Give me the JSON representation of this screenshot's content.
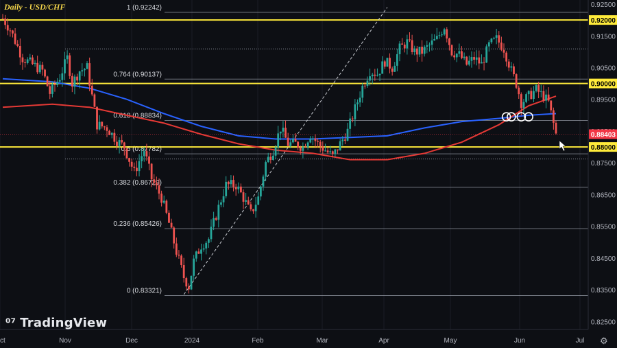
{
  "chart_data": {
    "type": "candlestick",
    "title": "Daily - USD/CHF",
    "brand": "TradingView",
    "x_labels": [
      "Oct",
      "Nov",
      "Dec",
      "2024",
      "Feb",
      "Mar",
      "Apr",
      "May",
      "Jun",
      "Jul"
    ],
    "price_ticks": [
      "0.92500",
      "0.91500",
      "0.90500",
      "0.89500",
      "0.88500",
      "0.87500",
      "0.86500",
      "0.85500",
      "0.84500",
      "0.83500",
      "0.82500"
    ],
    "ylim": [
      0.8225,
      0.9263
    ],
    "current_price": {
      "value": 0.88403,
      "label": "0.88403",
      "color": "#f23645"
    },
    "horizontal_levels": [
      {
        "value": 0.92,
        "label": "0.92000",
        "color": "#ffeb3b"
      },
      {
        "value": 0.9,
        "label": "0.90000",
        "color": "#ffeb3b"
      },
      {
        "value": 0.88,
        "label": "0.88000",
        "color": "#ffeb3b"
      }
    ],
    "fib_levels": [
      {
        "ratio": "1",
        "value": 0.92242,
        "label": "1 (0.92242)"
      },
      {
        "ratio": "0.764",
        "value": 0.90137,
        "label": "0.764 (0.90137)"
      },
      {
        "ratio": "0.618",
        "value": 0.88834,
        "label": "0.618 (0.88834)"
      },
      {
        "ratio": "0.5",
        "value": 0.87782,
        "label": "0.5 (0.87782)"
      },
      {
        "ratio": "0.382",
        "value": 0.86729,
        "label": "0.382 (0.86729)"
      },
      {
        "ratio": "0.236",
        "value": 0.85426,
        "label": "0.236 (0.85426)"
      },
      {
        "ratio": "0",
        "value": 0.83321,
        "label": "0 (0.83321)"
      }
    ],
    "extra_levels": [
      0.9109,
      0.8762
    ],
    "up_color": "#26a69a",
    "down_color": "#ef5350",
    "ma_colors": {
      "fast": "#e53935",
      "slow": "#2962ff"
    },
    "close_path": [
      [
        0,
        0.9205
      ],
      [
        3,
        0.917
      ],
      [
        8,
        0.908
      ],
      [
        12,
        0.906
      ],
      [
        16,
        0.904
      ],
      [
        19,
        0.897
      ],
      [
        23,
        0.902
      ],
      [
        26,
        0.908
      ],
      [
        28,
        0.9
      ],
      [
        31,
        0.904
      ],
      [
        34,
        0.905
      ],
      [
        38,
        0.887
      ],
      [
        42,
        0.886
      ],
      [
        46,
        0.882
      ],
      [
        49,
        0.88
      ],
      [
        53,
        0.872
      ],
      [
        57,
        0.879
      ],
      [
        60,
        0.87
      ],
      [
        64,
        0.864
      ],
      [
        67,
        0.856
      ],
      [
        70,
        0.847
      ],
      [
        73,
        0.839
      ],
      [
        75,
        0.836
      ],
      [
        77,
        0.844
      ],
      [
        80,
        0.849
      ],
      [
        83,
        0.851
      ],
      [
        87,
        0.861
      ],
      [
        90,
        0.868
      ],
      [
        94,
        0.868
      ],
      [
        97,
        0.864
      ],
      [
        100,
        0.859
      ],
      [
        103,
        0.864
      ],
      [
        106,
        0.875
      ],
      [
        109,
        0.879
      ],
      [
        112,
        0.886
      ],
      [
        115,
        0.881
      ],
      [
        118,
        0.881
      ],
      [
        121,
        0.88
      ],
      [
        124,
        0.884
      ],
      [
        127,
        0.881
      ],
      [
        130,
        0.879
      ],
      [
        133,
        0.877
      ],
      [
        136,
        0.881
      ],
      [
        139,
        0.885
      ],
      [
        142,
        0.892
      ],
      [
        145,
        0.899
      ],
      [
        148,
        0.904
      ],
      [
        151,
        0.903
      ],
      [
        154,
        0.907
      ],
      [
        157,
        0.905
      ],
      [
        160,
        0.911
      ],
      [
        163,
        0.913
      ],
      [
        166,
        0.91
      ],
      [
        169,
        0.91
      ],
      [
        172,
        0.912
      ],
      [
        175,
        0.914
      ],
      [
        178,
        0.918
      ],
      [
        181,
        0.91
      ],
      [
        184,
        0.909
      ],
      [
        187,
        0.906
      ],
      [
        190,
        0.908
      ],
      [
        193,
        0.906
      ],
      [
        196,
        0.912
      ],
      [
        199,
        0.914
      ],
      [
        202,
        0.911
      ],
      [
        205,
        0.904
      ],
      [
        207,
        0.9
      ],
      [
        209,
        0.894
      ],
      [
        212,
        0.896
      ],
      [
        215,
        0.898
      ],
      [
        218,
        0.896
      ],
      [
        220,
        0.894
      ],
      [
        223,
        0.884
      ]
    ],
    "fast_ma_path": [
      [
        0,
        0.8925
      ],
      [
        20,
        0.8935
      ],
      [
        35,
        0.8925
      ],
      [
        50,
        0.89
      ],
      [
        65,
        0.8875
      ],
      [
        80,
        0.884
      ],
      [
        95,
        0.881
      ],
      [
        110,
        0.879
      ],
      [
        125,
        0.878
      ],
      [
        140,
        0.876
      ],
      [
        155,
        0.876
      ],
      [
        170,
        0.878
      ],
      [
        185,
        0.8815
      ],
      [
        200,
        0.887
      ],
      [
        212,
        0.893
      ],
      [
        223,
        0.896
      ]
    ],
    "slow_ma_path": [
      [
        0,
        0.9015
      ],
      [
        20,
        0.9005
      ],
      [
        35,
        0.8985
      ],
      [
        50,
        0.895
      ],
      [
        65,
        0.8905
      ],
      [
        80,
        0.8865
      ],
      [
        95,
        0.8835
      ],
      [
        110,
        0.8825
      ],
      [
        125,
        0.8825
      ],
      [
        140,
        0.883
      ],
      [
        155,
        0.8835
      ],
      [
        170,
        0.886
      ],
      [
        185,
        0.888
      ],
      [
        200,
        0.889
      ],
      [
        212,
        0.89
      ],
      [
        223,
        0.8905
      ]
    ],
    "trendline": [
      [
        73,
        0.8335
      ],
      [
        155,
        0.924
      ]
    ],
    "circles": [
      [
        203,
        0.8895
      ],
      [
        205,
        0.8895
      ],
      [
        209,
        0.8895
      ],
      [
        212,
        0.8895
      ]
    ]
  }
}
